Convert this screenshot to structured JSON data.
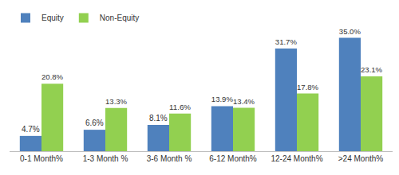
{
  "chart_data": {
    "type": "bar",
    "categories": [
      "0-1 Month%",
      "1-3 Month %",
      "3-6 Month %",
      "6-12 Month%",
      "12-24 Month%",
      ">24 Month%"
    ],
    "series": [
      {
        "name": "Equity",
        "color": "#4f81bd",
        "values": [
          4.7,
          6.6,
          8.1,
          13.9,
          31.7,
          35.0
        ],
        "value_labels": [
          "4.7%",
          "6.6%",
          "8.1%",
          "13.9%",
          "31.7%",
          "35.0%"
        ]
      },
      {
        "name": "Non-Equity",
        "color": "#92d050",
        "values": [
          20.8,
          13.3,
          11.6,
          13.4,
          17.8,
          23.1
        ],
        "value_labels": [
          "20.8%",
          "13.3%",
          "11.6%",
          "13.4%",
          "17.8%",
          "23.1%"
        ]
      }
    ],
    "data_labels": true,
    "legend": "top left",
    "grid": false,
    "tick_labels": "x"
  }
}
